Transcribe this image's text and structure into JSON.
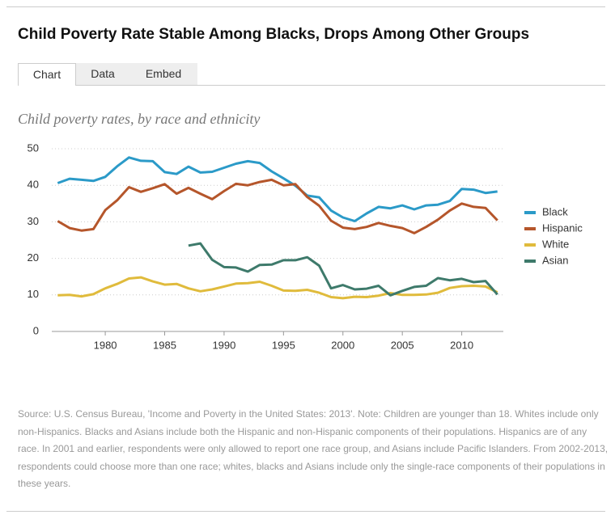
{
  "header": {
    "title": "Child Poverty Rate Stable Among Blacks, Drops Among Other Groups"
  },
  "tabs": [
    "Chart",
    "Data",
    "Embed"
  ],
  "chart_data": {
    "type": "line",
    "subtitle": "Child poverty rates, by race and ethnicity",
    "x": [
      1976,
      1977,
      1978,
      1979,
      1980,
      1981,
      1982,
      1983,
      1984,
      1985,
      1986,
      1987,
      1988,
      1989,
      1990,
      1991,
      1992,
      1993,
      1994,
      1995,
      1996,
      1997,
      1998,
      1999,
      2000,
      2001,
      2002,
      2003,
      2004,
      2005,
      2006,
      2007,
      2008,
      2009,
      2010,
      2011,
      2012,
      2013
    ],
    "series": [
      {
        "name": "Black",
        "color": "#2b9ac8",
        "values": [
          40.6,
          41.8,
          41.5,
          41.2,
          42.3,
          45.2,
          47.6,
          46.7,
          46.6,
          43.6,
          43.1,
          45.1,
          43.5,
          43.7,
          44.8,
          45.9,
          46.6,
          46.1,
          43.8,
          41.9,
          39.9,
          37.2,
          36.7,
          33.1,
          31.2,
          30.2,
          32.3,
          34.1,
          33.7,
          34.5,
          33.4,
          34.5,
          34.7,
          35.7,
          39.0,
          38.8,
          37.9,
          38.3
        ]
      },
      {
        "name": "Hispanic",
        "color": "#b5562b",
        "values": [
          30.2,
          28.3,
          27.6,
          28.0,
          33.2,
          35.9,
          39.5,
          38.2,
          39.2,
          40.3,
          37.7,
          39.3,
          37.7,
          36.2,
          38.4,
          40.4,
          40.0,
          40.9,
          41.5,
          40.0,
          40.3,
          36.8,
          34.4,
          30.3,
          28.4,
          28.0,
          28.6,
          29.7,
          28.9,
          28.3,
          26.9,
          28.6,
          30.6,
          33.1,
          35.0,
          34.1,
          33.8,
          30.4
        ]
      },
      {
        "name": "White",
        "color": "#e0bb3c",
        "values": [
          9.9,
          10.0,
          9.6,
          10.2,
          11.8,
          13.0,
          14.5,
          14.8,
          13.7,
          12.8,
          13.0,
          11.8,
          11.0,
          11.5,
          12.3,
          13.1,
          13.2,
          13.6,
          12.5,
          11.2,
          11.1,
          11.4,
          10.6,
          9.4,
          9.1,
          9.5,
          9.4,
          9.8,
          10.5,
          10.0,
          10.0,
          10.1,
          10.6,
          11.9,
          12.4,
          12.5,
          12.3,
          10.7
        ]
      },
      {
        "name": "Asian",
        "color": "#3e7a6b",
        "values": [
          null,
          null,
          null,
          null,
          null,
          null,
          null,
          null,
          null,
          null,
          null,
          23.5,
          24.1,
          19.6,
          17.6,
          17.5,
          16.4,
          18.2,
          18.3,
          19.5,
          19.5,
          20.3,
          18.0,
          11.8,
          12.7,
          11.5,
          11.7,
          12.5,
          9.9,
          11.1,
          12.2,
          12.5,
          14.6,
          14.0,
          14.4,
          13.5,
          13.8,
          10.1
        ]
      }
    ],
    "xlim": [
      1975.5,
      2013.5
    ],
    "xticks": [
      1980,
      1985,
      1990,
      1995,
      2000,
      2005,
      2010
    ],
    "ylim": [
      0,
      50
    ],
    "yticks": [
      0,
      10,
      20,
      30,
      40,
      50
    ],
    "grid": true,
    "legend": "right"
  },
  "source": "Source: U.S. Census Bureau, 'Income and Poverty in the United States: 2013'. Note: Children are younger than 18. Whites include only non-Hispanics. Blacks and Asians include both the Hispanic and non-Hispanic components of their populations. Hispanics are of any race. In 2001 and earlier, respondents were only allowed to report one race group, and Asians include Pacific Islanders. From 2002-2013, respondents could choose more than one race; whites, blacks and Asians include only the single-race components of their populations in these years."
}
